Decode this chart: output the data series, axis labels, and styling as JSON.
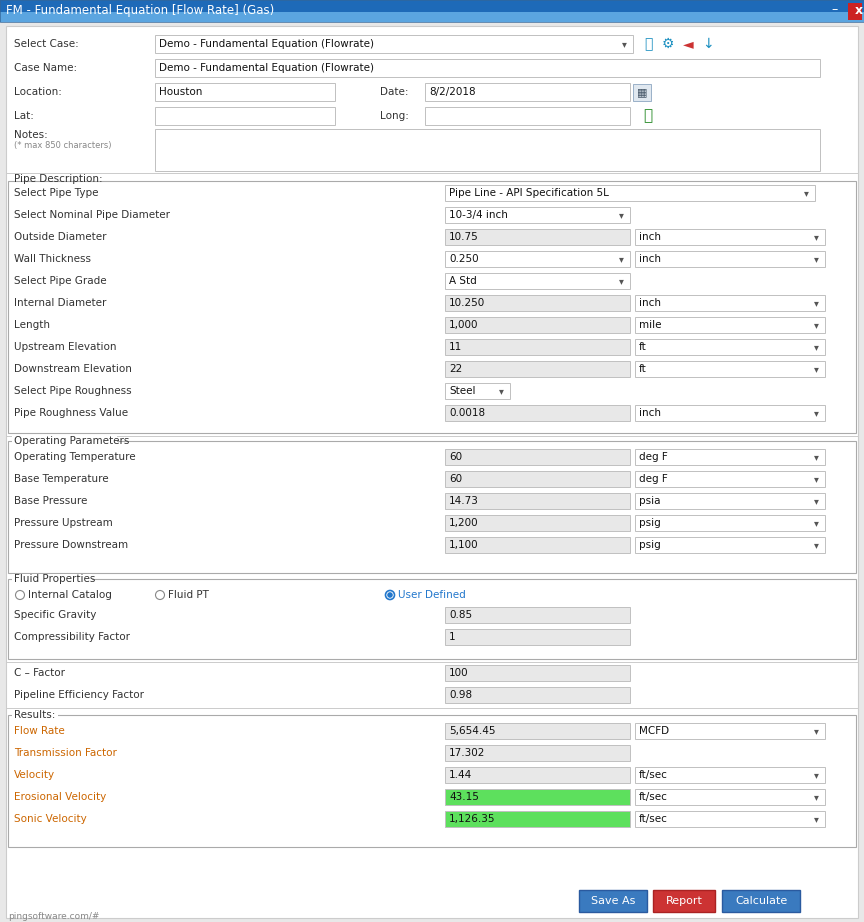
{
  "title": "FM - Fundamental Equation [Flow Rate] (Gas)",
  "title_bg_top": "#5a9fd4",
  "title_bg_bot": "#1a5fa8",
  "window_bg": "#f0f0f0",
  "label_dark": "#333333",
  "label_orange": "#cc6600",
  "label_blue": "#1a6eb5",
  "input_bg_white": "#ffffff",
  "input_bg_gray": "#e8e8e8",
  "input_border": "#c0c0c0",
  "section_border": "#aaaaaa",
  "green_bg": "#5de05d",
  "btn_blue": "#3a7abf",
  "btn_red": "#cc3333",
  "pipe_rows": [
    [
      "Select Pipe Type",
      "Pipe Line - API Specification 5L",
      "dd_wide",
      ""
    ],
    [
      "Select Nominal Pipe Diameter",
      "10-3/4 inch",
      "dd_med",
      ""
    ],
    [
      "Outside Diameter",
      "10.75",
      "gray",
      "inch"
    ],
    [
      "Wall Thickness",
      "0.250",
      "dd_med",
      "inch"
    ],
    [
      "Select Pipe Grade",
      "A Std",
      "dd_med",
      ""
    ],
    [
      "Internal Diameter",
      "10.250",
      "gray",
      "inch"
    ],
    [
      "Length",
      "1,000",
      "gray",
      "mile"
    ],
    [
      "Upstream Elevation",
      "11",
      "gray",
      "ft"
    ],
    [
      "Downstream Elevation",
      "22",
      "gray",
      "ft"
    ],
    [
      "Select Pipe Roughness",
      "Steel",
      "dd_small",
      ""
    ],
    [
      "Pipe Roughness Value",
      "0.0018",
      "gray",
      "inch"
    ]
  ],
  "op_rows": [
    [
      "Operating Temperature",
      "60",
      "deg F"
    ],
    [
      "Base Temperature",
      "60",
      "deg F"
    ],
    [
      "Base Pressure",
      "14.73",
      "psia"
    ],
    [
      "Pressure Upstream",
      "1,200",
      "psig"
    ],
    [
      "Pressure Downstream",
      "1,100",
      "psig"
    ]
  ],
  "fluid_rows": [
    [
      "Specific Gravity",
      "0.85"
    ],
    [
      "Compressibility Factor",
      "1"
    ]
  ],
  "result_rows": [
    [
      "Flow Rate",
      "5,654.45",
      "gray",
      "MCFD"
    ],
    [
      "Transmission Factor",
      "17.302",
      "gray",
      ""
    ],
    [
      "Velocity",
      "1.44",
      "gray",
      "ft/sec"
    ],
    [
      "Erosional Velocity",
      "43.15",
      "green",
      "ft/sec"
    ],
    [
      "Sonic Velocity",
      "1,126.35",
      "green",
      "ft/sec"
    ]
  ]
}
